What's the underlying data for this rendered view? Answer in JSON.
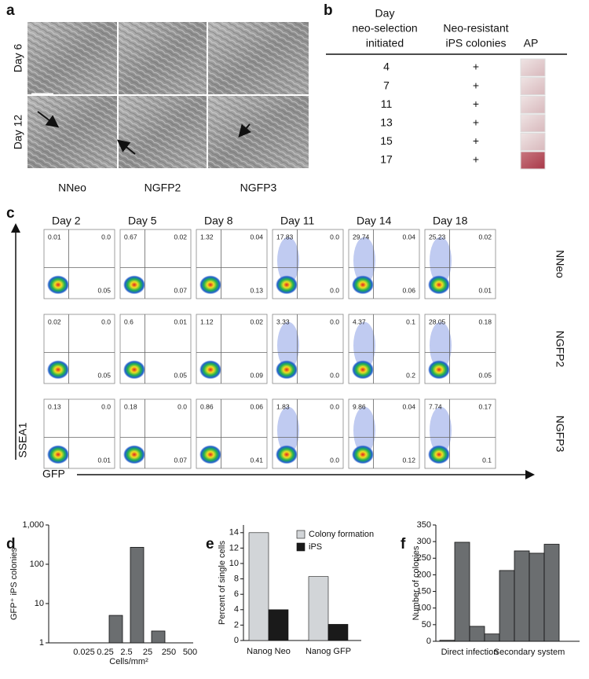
{
  "panel_a": {
    "label": "a",
    "row_labels": [
      "Day 6",
      "Day 12"
    ],
    "column_labels": [
      "NNeo",
      "NGFP2",
      "NGFP3"
    ]
  },
  "panel_b": {
    "label": "b",
    "headers": [
      [
        "Day",
        "neo-selection",
        "initiated"
      ],
      [
        "Neo-resistant",
        "iPS colonies"
      ],
      [
        "AP"
      ]
    ],
    "rows": [
      [
        "4",
        "+"
      ],
      [
        "7",
        "+"
      ],
      [
        "11",
        "+"
      ],
      [
        "13",
        "+"
      ],
      [
        "15",
        "+"
      ],
      [
        "17",
        "+"
      ]
    ]
  },
  "panel_c": {
    "label": "c",
    "days": [
      "Day 2",
      "Day 5",
      "Day 8",
      "Day 11",
      "Day 14",
      "Day 18"
    ],
    "y_axis": "SSEA1",
    "x_axis": "GFP",
    "rows": [
      {
        "name": "NNeo",
        "plots": [
          [
            "0.01",
            "0.0",
            "0.05"
          ],
          [
            "0.67",
            "0.02",
            "0.07"
          ],
          [
            "1.32",
            "0.04",
            "0.13"
          ],
          [
            "17.83",
            "0.0",
            "0.0"
          ],
          [
            "29.74",
            "0.04",
            "0.06"
          ],
          [
            "25.23",
            "0.02",
            "0.01"
          ]
        ]
      },
      {
        "name": "NGFP2",
        "plots": [
          [
            "0.02",
            "0.0",
            "0.05"
          ],
          [
            "0.6",
            "0.01",
            "0.05"
          ],
          [
            "1.12",
            "0.02",
            "0.09"
          ],
          [
            "3.33",
            "0.0",
            "0.0"
          ],
          [
            "4.37",
            "0.1",
            "0.2"
          ],
          [
            "28.05",
            "0.18",
            "0.05"
          ]
        ]
      },
      {
        "name": "NGFP3",
        "plots": [
          [
            "0.13",
            "0.0",
            "0.01"
          ],
          [
            "0.18",
            "0.0",
            "0.07"
          ],
          [
            "0.86",
            "0.06",
            "0.41"
          ],
          [
            "1.83",
            "0.0",
            "0.0"
          ],
          [
            "9.86",
            "0.04",
            "0.12"
          ],
          [
            "7.74",
            "0.17",
            "0.1"
          ]
        ]
      }
    ]
  },
  "chart_data": [
    {
      "panel": "d",
      "type": "histogram",
      "ylabel": "GFP⁺ iPS colonies",
      "xlabel": "Cells/mm²",
      "bins": [
        "0.025",
        "0.25",
        "2.5",
        "25",
        "250",
        "500"
      ],
      "values": [
        null,
        5,
        270,
        2,
        null
      ],
      "log_y": true,
      "ylim": [
        1,
        1000
      ],
      "yticks": [
        1,
        10,
        100,
        {
          "value": 1000,
          "label": "1,000"
        }
      ],
      "color": "#6b6e70"
    },
    {
      "panel": "e",
      "type": "bar",
      "ylabel": "Percent of single cells",
      "categories": [
        "Nanog Neo",
        "Nanog GFP"
      ],
      "series": [
        {
          "name": "Colony formation",
          "color": "#d2d5d8",
          "values": [
            14,
            8.3
          ]
        },
        {
          "name": "iPS",
          "color": "#1a1a1a",
          "values": [
            4,
            2.1
          ]
        }
      ],
      "ylim": [
        0,
        15
      ],
      "yticks": [
        0,
        2,
        4,
        6,
        8,
        10,
        12,
        14
      ],
      "legend": "top-right"
    },
    {
      "panel": "f",
      "type": "grouped",
      "ylabel": "Number of colonies",
      "categories": [
        "Direct infection",
        "Secondary system"
      ],
      "values": [
        [
          3,
          298,
          45,
          22
        ],
        [
          213,
          272,
          265,
          292
        ]
      ],
      "ylim": [
        0,
        350
      ],
      "yticks": [
        0,
        50,
        100,
        150,
        200,
        250,
        300,
        350
      ],
      "color": "#6b6e70"
    }
  ]
}
